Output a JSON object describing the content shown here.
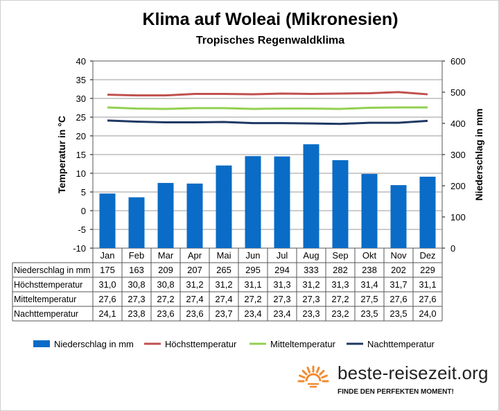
{
  "chart_data": {
    "type": "bar",
    "title": "Klima auf Woleai (Mikronesien)",
    "subtitle": "Tropisches Regenwaldklima",
    "categories": [
      "Jan",
      "Feb",
      "Mar",
      "Apr",
      "Mai",
      "Jun",
      "Jul",
      "Aug",
      "Sep",
      "Okt",
      "Nov",
      "Dez"
    ],
    "y_left": {
      "label": "Temperatur in °C",
      "min": -10,
      "max": 40,
      "step": 5,
      "ticks": [
        "-10",
        "-5",
        "0",
        "5",
        "10",
        "15",
        "20",
        "25",
        "30",
        "35",
        "40"
      ]
    },
    "y_right": {
      "label": "Niederschlag in mm",
      "min": 0,
      "max": 600,
      "step": 100,
      "ticks": [
        "0",
        "100",
        "200",
        "300",
        "400",
        "500",
        "600"
      ]
    },
    "grid": true,
    "legend_position": "bottom",
    "series": [
      {
        "name": "Niederschlag in mm",
        "type": "bar",
        "axis": "right",
        "color": "#0a6cc6",
        "values": [
          175,
          163,
          209,
          207,
          265,
          295,
          294,
          333,
          282,
          238,
          202,
          229
        ],
        "labels": [
          "175",
          "163",
          "209",
          "207",
          "265",
          "295",
          "294",
          "333",
          "282",
          "238",
          "202",
          "229"
        ]
      },
      {
        "name": "Höchsttemperatur",
        "type": "line",
        "axis": "left",
        "color": "#c0504d",
        "values": [
          31.0,
          30.8,
          30.8,
          31.2,
          31.2,
          31.1,
          31.3,
          31.2,
          31.3,
          31.4,
          31.7,
          31.1
        ],
        "labels": [
          "31,0",
          "30,8",
          "30,8",
          "31,2",
          "31,2",
          "31,1",
          "31,3",
          "31,2",
          "31,3",
          "31,4",
          "31,7",
          "31,1"
        ]
      },
      {
        "name": "Mitteltemperatur",
        "type": "line",
        "axis": "left",
        "color": "#92d050",
        "values": [
          27.6,
          27.3,
          27.2,
          27.4,
          27.4,
          27.2,
          27.3,
          27.3,
          27.2,
          27.5,
          27.6,
          27.6
        ],
        "labels": [
          "27,6",
          "27,3",
          "27,2",
          "27,4",
          "27,4",
          "27,2",
          "27,3",
          "27,3",
          "27,2",
          "27,5",
          "27,6",
          "27,6"
        ]
      },
      {
        "name": "Nachttemperatur",
        "type": "line",
        "axis": "left",
        "color": "#1f3864",
        "values": [
          24.1,
          23.8,
          23.6,
          23.6,
          23.7,
          23.4,
          23.4,
          23.3,
          23.2,
          23.5,
          23.5,
          24.0
        ],
        "labels": [
          "24,1",
          "23,8",
          "23,6",
          "23,6",
          "23,7",
          "23,4",
          "23,4",
          "23,3",
          "23,2",
          "23,5",
          "23,5",
          "24,0"
        ]
      }
    ]
  },
  "branding": {
    "name": "beste-reisezeit.org",
    "tagline": "FINDE DEN PERFEKTEN MOMENT!",
    "logo_icon": "sun-icon",
    "logo_color": "#f28a2e"
  }
}
